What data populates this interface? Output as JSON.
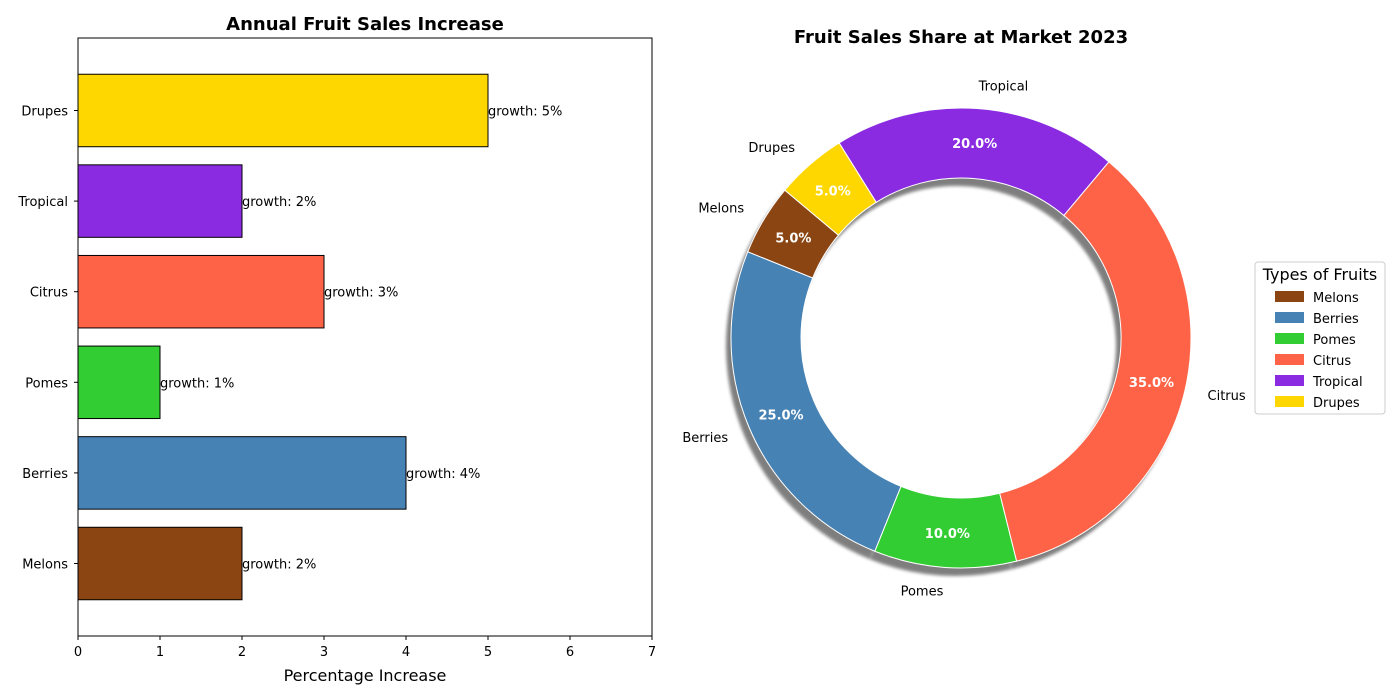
{
  "chart_data": [
    {
      "type": "bar",
      "orientation": "horizontal",
      "title": "Annual Fruit Sales Increase",
      "xlabel": "Percentage Increase",
      "ylabel": "",
      "categories": [
        "Melons",
        "Berries",
        "Pomes",
        "Citrus",
        "Tropical",
        "Drupes"
      ],
      "values": [
        2,
        4,
        1,
        3,
        2,
        5
      ],
      "data_labels": [
        "growth: 2%",
        "growth: 4%",
        "growth: 1%",
        "growth: 3%",
        "growth: 2%",
        "growth: 5%"
      ],
      "colors": [
        "#8B4513",
        "#4682B4",
        "#32CD32",
        "#FF6347",
        "#8A2BE2",
        "#FFD700"
      ],
      "xlim": [
        0,
        7
      ],
      "xticks": [
        0,
        1,
        2,
        3,
        4,
        5,
        6,
        7
      ],
      "grid": false
    },
    {
      "type": "pie",
      "donut": true,
      "shadow": true,
      "title": "Fruit Sales Share at Market 2023",
      "categories": [
        "Melons",
        "Berries",
        "Pomes",
        "Citrus",
        "Tropical",
        "Drupes"
      ],
      "values": [
        5,
        25,
        10,
        35,
        20,
        5
      ],
      "pct_labels": [
        "5.0%",
        "25.0%",
        "10.0%",
        "35.0%",
        "20.0%",
        "5.0%"
      ],
      "colors": [
        "#8B4513",
        "#4682B4",
        "#32CD32",
        "#FF6347",
        "#8A2BE2",
        "#FFD700"
      ],
      "legend": {
        "title": "Types of Fruits",
        "entries": [
          "Melons",
          "Berries",
          "Pomes",
          "Citrus",
          "Tropical",
          "Drupes"
        ],
        "placement": "center-right"
      }
    }
  ]
}
